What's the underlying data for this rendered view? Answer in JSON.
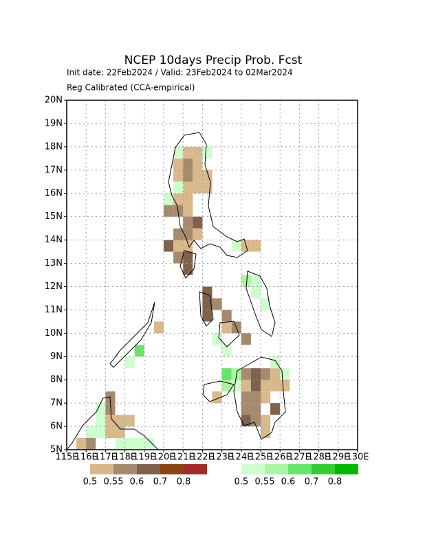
{
  "chart_data": {
    "type": "map",
    "title": "NCEP 10days Precip Prob. Fcst",
    "subtitle": "Init date: 22Feb2024 / Valid: 23Feb2024 to 02Mar2024",
    "note": "Reg Calibrated (CCA-empirical)",
    "xlim": [
      115,
      130
    ],
    "ylim": [
      5,
      20
    ],
    "xticks": [
      {
        "value": 115,
        "label": "115E"
      },
      {
        "value": 116,
        "label": "116E"
      },
      {
        "value": 117,
        "label": "117E"
      },
      {
        "value": 118,
        "label": "118E"
      },
      {
        "value": 119,
        "label": "119E"
      },
      {
        "value": 120,
        "label": "120E"
      },
      {
        "value": 121,
        "label": "121E"
      },
      {
        "value": 122,
        "label": "122E"
      },
      {
        "value": 123,
        "label": "123E"
      },
      {
        "value": 124,
        "label": "124E"
      },
      {
        "value": 125,
        "label": "125E"
      },
      {
        "value": 126,
        "label": "126E"
      },
      {
        "value": 127,
        "label": "127E"
      },
      {
        "value": 128,
        "label": "128E"
      },
      {
        "value": 129,
        "label": "129E"
      },
      {
        "value": 130,
        "label": "130E"
      }
    ],
    "yticks": [
      {
        "value": 5,
        "label": "5N"
      },
      {
        "value": 6,
        "label": "6N"
      },
      {
        "value": 7,
        "label": "7N"
      },
      {
        "value": 8,
        "label": "8N"
      },
      {
        "value": 9,
        "label": "9N"
      },
      {
        "value": 10,
        "label": "10N"
      },
      {
        "value": 11,
        "label": "11N"
      },
      {
        "value": 12,
        "label": "12N"
      },
      {
        "value": 13,
        "label": "13N"
      },
      {
        "value": 14,
        "label": "14N"
      },
      {
        "value": 15,
        "label": "15N"
      },
      {
        "value": 16,
        "label": "16N"
      },
      {
        "value": 17,
        "label": "17N"
      },
      {
        "value": 18,
        "label": "18N"
      },
      {
        "value": 19,
        "label": "19N"
      },
      {
        "value": 20,
        "label": "20N"
      }
    ],
    "grid": true,
    "cell_size": 0.5,
    "dry_levels": [
      0.5,
      0.55,
      0.6,
      0.7,
      0.8
    ],
    "dry_colors": [
      "#d9b88c",
      "#a68a6e",
      "#80614a",
      "#8b4513",
      "#a52a2a"
    ],
    "wet_levels": [
      0.5,
      0.55,
      0.6,
      0.7,
      0.8
    ],
    "wet_colors": [
      "#ccffcc",
      "#aaf5a0",
      "#66e666",
      "#33cc33",
      "#00b800"
    ],
    "dry_cells": [
      [
        121.0,
        17.5,
        0.5
      ],
      [
        121.5,
        17.5,
        0.5
      ],
      [
        120.5,
        17.0,
        0.5
      ],
      [
        121.0,
        17.0,
        0.55
      ],
      [
        121.5,
        17.0,
        0.5
      ],
      [
        120.5,
        16.5,
        0.5
      ],
      [
        121.0,
        16.5,
        0.55
      ],
      [
        121.5,
        16.5,
        0.5
      ],
      [
        122.0,
        16.5,
        0.5
      ],
      [
        121.0,
        16.0,
        0.5
      ],
      [
        121.5,
        16.0,
        0.5
      ],
      [
        122.0,
        16.0,
        0.5
      ],
      [
        120.5,
        15.5,
        0.5
      ],
      [
        121.0,
        15.5,
        0.5
      ],
      [
        120.0,
        15.0,
        0.55
      ],
      [
        120.5,
        15.0,
        0.55
      ],
      [
        121.0,
        15.0,
        0.5
      ],
      [
        121.0,
        14.5,
        0.55
      ],
      [
        121.5,
        14.5,
        0.6
      ],
      [
        120.5,
        14.0,
        0.55
      ],
      [
        121.0,
        14.0,
        0.55
      ],
      [
        121.5,
        14.0,
        0.5
      ],
      [
        120.0,
        13.5,
        0.6
      ],
      [
        120.5,
        13.5,
        0.5
      ],
      [
        121.0,
        13.5,
        0.5
      ],
      [
        120.5,
        13.0,
        0.55
      ],
      [
        121.0,
        13.0,
        0.6
      ],
      [
        121.0,
        12.5,
        0.6
      ],
      [
        124.0,
        13.5,
        0.5
      ],
      [
        124.5,
        13.5,
        0.5
      ],
      [
        122.0,
        11.5,
        0.6
      ],
      [
        122.0,
        11.0,
        0.6
      ],
      [
        122.5,
        11.0,
        0.55
      ],
      [
        122.0,
        10.5,
        0.6
      ],
      [
        123.0,
        10.5,
        0.55
      ],
      [
        123.0,
        10.0,
        0.5
      ],
      [
        123.5,
        10.0,
        0.55
      ],
      [
        124.0,
        9.5,
        0.55
      ],
      [
        119.5,
        10.0,
        0.5
      ],
      [
        124.0,
        8.0,
        0.55
      ],
      [
        124.5,
        8.0,
        0.6
      ],
      [
        125.0,
        8.0,
        0.55
      ],
      [
        125.5,
        8.0,
        0.5
      ],
      [
        124.0,
        7.5,
        0.5
      ],
      [
        124.5,
        7.5,
        0.6
      ],
      [
        125.0,
        7.5,
        0.5
      ],
      [
        125.5,
        7.5,
        0.5
      ],
      [
        126.0,
        7.5,
        0.5
      ],
      [
        124.0,
        7.0,
        0.55
      ],
      [
        124.5,
        7.0,
        0.55
      ],
      [
        125.0,
        7.0,
        0.5
      ],
      [
        124.0,
        6.5,
        0.55
      ],
      [
        124.5,
        6.5,
        0.55
      ],
      [
        125.5,
        6.5,
        0.6
      ],
      [
        124.0,
        6.0,
        0.6
      ],
      [
        124.5,
        6.0,
        0.55
      ],
      [
        125.0,
        6.0,
        0.5
      ],
      [
        125.0,
        5.5,
        0.5
      ],
      [
        122.5,
        7.0,
        0.5
      ],
      [
        117.0,
        7.0,
        0.55
      ],
      [
        117.0,
        6.5,
        0.55
      ],
      [
        117.0,
        6.0,
        0.5
      ],
      [
        117.5,
        6.0,
        0.5
      ],
      [
        118.0,
        6.0,
        0.5
      ],
      [
        117.0,
        5.5,
        0.5
      ],
      [
        117.5,
        5.5,
        0.5
      ],
      [
        115.5,
        5.0,
        0.5
      ],
      [
        116.0,
        5.0,
        0.55
      ]
    ],
    "wet_cells": [
      [
        120.5,
        17.5,
        0.5
      ],
      [
        122.0,
        17.5,
        0.5
      ],
      [
        120.5,
        16.0,
        0.5
      ],
      [
        120.0,
        15.5,
        0.5
      ],
      [
        123.5,
        13.5,
        0.5
      ],
      [
        124.0,
        12.0,
        0.55
      ],
      [
        124.5,
        12.0,
        0.5
      ],
      [
        124.5,
        11.5,
        0.5
      ],
      [
        125.0,
        11.0,
        0.5
      ],
      [
        122.5,
        9.5,
        0.5
      ],
      [
        123.0,
        9.0,
        0.5
      ],
      [
        123.0,
        8.0,
        0.6
      ],
      [
        123.5,
        8.0,
        0.55
      ],
      [
        123.0,
        7.5,
        0.55
      ],
      [
        123.5,
        7.5,
        0.5
      ],
      [
        125.5,
        8.5,
        0.5
      ],
      [
        126.0,
        8.0,
        0.5
      ],
      [
        118.5,
        9.0,
        0.6
      ],
      [
        118.0,
        8.5,
        0.5
      ],
      [
        116.5,
        6.5,
        0.5
      ],
      [
        116.5,
        6.0,
        0.5
      ],
      [
        116.0,
        5.5,
        0.5
      ],
      [
        116.5,
        5.5,
        0.5
      ],
      [
        117.5,
        5.0,
        0.5
      ],
      [
        118.0,
        5.0,
        0.5
      ],
      [
        118.5,
        5.0,
        0.5
      ],
      [
        119.0,
        5.0,
        0.5
      ]
    ]
  }
}
